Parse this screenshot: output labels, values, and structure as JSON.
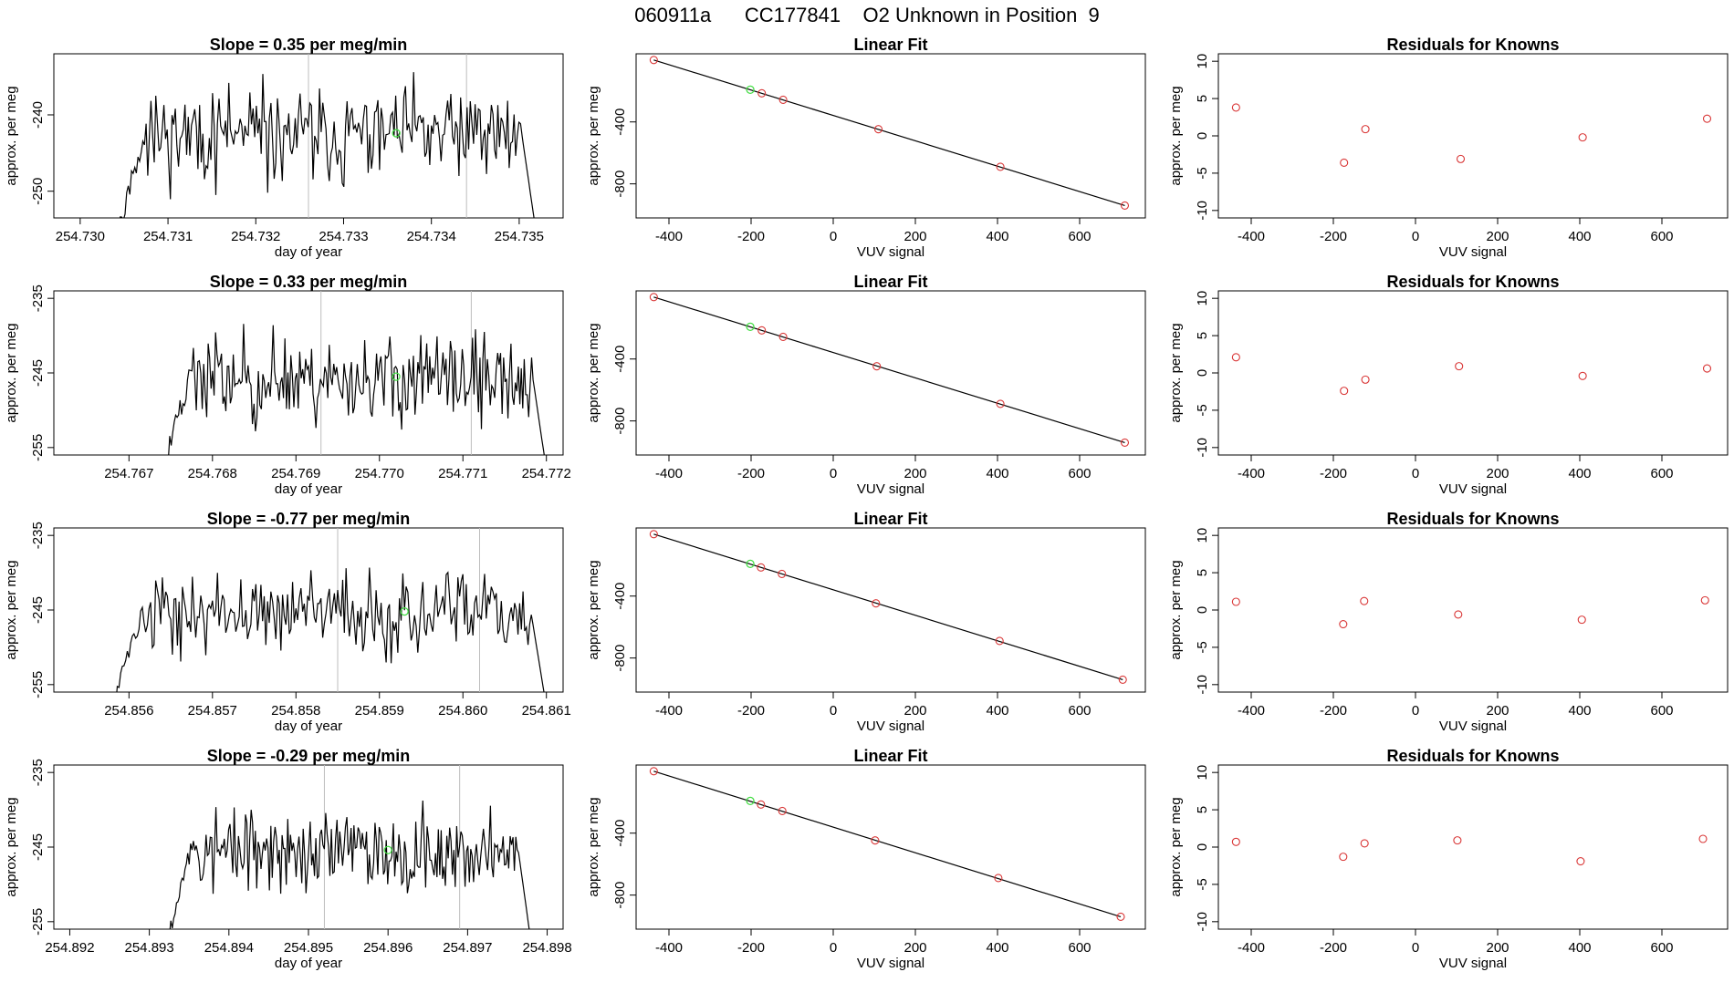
{
  "page": {
    "title": "060911a      CC177841    O2 Unknown in Position  9"
  },
  "chart_data": [
    {
      "type": "line",
      "row": 0,
      "col": 0,
      "title": "Slope =  0.35  per meg/min",
      "xlabel": "day of year",
      "ylabel": "approx. per meg",
      "xlim": [
        254.7297,
        254.7355
      ],
      "ylim": [
        -253.5,
        -232
      ],
      "xticks": [
        254.73,
        254.731,
        254.732,
        254.733,
        254.734,
        254.735
      ],
      "xtick_labels": [
        "254.730",
        "254.731",
        "254.732",
        "254.733",
        "254.734",
        "254.735"
      ],
      "yticks": [
        -250,
        -240
      ],
      "ytick_labels": [
        "-250",
        "-240"
      ],
      "vlines": [
        254.7326,
        254.7344
      ],
      "series": [
        {
          "name": "trace",
          "x_start": 254.7304,
          "x_end": 254.7352,
          "level": -242.7,
          "noise": 3.1,
          "ramp_low": -256,
          "seed": 11
        }
      ],
      "highlight": [
        {
          "x": 254.7336,
          "y": -242.4
        }
      ]
    },
    {
      "type": "line",
      "row": 0,
      "col": 1,
      "title": "Linear Fit",
      "xlabel": "VUV signal",
      "ylabel": "approx. per meg",
      "xlim": [
        -480,
        760
      ],
      "ylim": [
        -1020,
        40
      ],
      "xticks": [
        -400,
        -200,
        0,
        200,
        400,
        600
      ],
      "xtick_labels": [
        "-400",
        "-200",
        "0",
        "200",
        "400",
        "600"
      ],
      "yticks": [
        -800,
        -400
      ],
      "ytick_labels": [
        "-800",
        "-400"
      ],
      "line": {
        "x": [
          -437,
          710
        ],
        "y": [
          0,
          -940
        ]
      },
      "points": [
        {
          "x": -437,
          "y": 0
        },
        {
          "x": -174,
          "y": -215
        },
        {
          "x": -122,
          "y": -257
        },
        {
          "x": 110,
          "y": -447
        },
        {
          "x": 407,
          "y": -690
        },
        {
          "x": 710,
          "y": -940
        }
      ],
      "highlight": [
        {
          "x": -202,
          "y": -192
        }
      ]
    },
    {
      "type": "scatter",
      "row": 0,
      "col": 2,
      "title": "Residuals for Knowns",
      "xlabel": "VUV signal",
      "ylabel": "approx. per meg",
      "xlim": [
        -480,
        760
      ],
      "ylim": [
        -11,
        11
      ],
      "xticks": [
        -400,
        -200,
        0,
        200,
        400,
        600
      ],
      "xtick_labels": [
        "-400",
        "-200",
        "0",
        "200",
        "400",
        "600"
      ],
      "yticks": [
        -10,
        -5,
        0,
        5,
        10
      ],
      "ytick_labels": [
        "-10",
        "-5",
        "0",
        "5",
        "10"
      ],
      "points": [
        {
          "x": -437,
          "y": 3.8
        },
        {
          "x": -174,
          "y": -3.6
        },
        {
          "x": -122,
          "y": 0.9
        },
        {
          "x": 110,
          "y": -3.1
        },
        {
          "x": 407,
          "y": -0.2
        },
        {
          "x": 710,
          "y": 2.3
        }
      ]
    },
    {
      "type": "line",
      "row": 1,
      "col": 0,
      "title": "Slope =  0.33  per meg/min",
      "xlabel": "day of year",
      "ylabel": "approx. per meg",
      "xlim": [
        254.7661,
        254.7722
      ],
      "ylim": [
        -256,
        -234
      ],
      "xticks": [
        254.767,
        254.768,
        254.769,
        254.77,
        254.771,
        254.772
      ],
      "xtick_labels": [
        "254.767",
        "254.768",
        "254.769",
        "254.770",
        "254.771",
        "254.772"
      ],
      "yticks": [
        -255,
        -245,
        -235
      ],
      "ytick_labels": [
        "-255",
        "-245",
        "-235"
      ],
      "vlines": [
        254.7693,
        254.7711
      ],
      "series": [
        {
          "name": "trace",
          "x_start": 254.7674,
          "x_end": 254.772,
          "level": -245.8,
          "noise": 3.0,
          "ramp_low": -258,
          "seed": 23
        }
      ],
      "highlight": [
        {
          "x": 254.7702,
          "y": -245.5
        }
      ]
    },
    {
      "type": "line",
      "row": 1,
      "col": 1,
      "title": "Linear Fit",
      "xlabel": "VUV signal",
      "ylabel": "approx. per meg",
      "xlim": [
        -480,
        760
      ],
      "ylim": [
        -1020,
        40
      ],
      "xticks": [
        -400,
        -200,
        0,
        200,
        400,
        600
      ],
      "xtick_labels": [
        "-400",
        "-200",
        "0",
        "200",
        "400",
        "600"
      ],
      "yticks": [
        -800,
        -400
      ],
      "ytick_labels": [
        "-800",
        "-400"
      ],
      "line": {
        "x": [
          -437,
          710
        ],
        "y": [
          0,
          -940
        ]
      },
      "points": [
        {
          "x": -437,
          "y": 0
        },
        {
          "x": -174,
          "y": -215
        },
        {
          "x": -122,
          "y": -257
        },
        {
          "x": 106,
          "y": -447
        },
        {
          "x": 407,
          "y": -690
        },
        {
          "x": 710,
          "y": -940
        }
      ],
      "highlight": [
        {
          "x": -202,
          "y": -192
        }
      ]
    },
    {
      "type": "scatter",
      "row": 1,
      "col": 2,
      "title": "Residuals for Knowns",
      "xlabel": "VUV signal",
      "ylabel": "approx. per meg",
      "xlim": [
        -480,
        760
      ],
      "ylim": [
        -11,
        11
      ],
      "xticks": [
        -400,
        -200,
        0,
        200,
        400,
        600
      ],
      "xtick_labels": [
        "-400",
        "-200",
        "0",
        "200",
        "400",
        "600"
      ],
      "yticks": [
        -10,
        -5,
        0,
        5,
        10
      ],
      "ytick_labels": [
        "-10",
        "-5",
        "0",
        "5",
        "10"
      ],
      "points": [
        {
          "x": -437,
          "y": 2.1
        },
        {
          "x": -174,
          "y": -2.4
        },
        {
          "x": -122,
          "y": -0.9
        },
        {
          "x": 106,
          "y": 0.9
        },
        {
          "x": 407,
          "y": -0.4
        },
        {
          "x": 710,
          "y": 0.6
        }
      ]
    },
    {
      "type": "line",
      "row": 2,
      "col": 0,
      "title": "Slope =  -0.77  per meg/min",
      "xlabel": "day of year",
      "ylabel": "approx. per meg",
      "xlim": [
        254.8551,
        254.8612
      ],
      "ylim": [
        -256,
        -234
      ],
      "xticks": [
        254.856,
        254.857,
        254.858,
        254.859,
        254.86,
        254.861
      ],
      "xtick_labels": [
        "254.856",
        "254.857",
        "254.858",
        "254.859",
        "254.860",
        "254.861"
      ],
      "yticks": [
        -255,
        -245,
        -235
      ],
      "ytick_labels": [
        "-255",
        "-245",
        "-235"
      ],
      "vlines": [
        254.8585,
        254.8602
      ],
      "series": [
        {
          "name": "trace",
          "x_start": 254.8558,
          "x_end": 254.861,
          "level": -245.5,
          "noise": 2.7,
          "ramp_low": -258,
          "seed": 37
        }
      ],
      "highlight": [
        {
          "x": 254.8593,
          "y": -245.2
        }
      ]
    },
    {
      "type": "line",
      "row": 2,
      "col": 1,
      "title": "Linear Fit",
      "xlabel": "VUV signal",
      "ylabel": "approx. per meg",
      "xlim": [
        -480,
        760
      ],
      "ylim": [
        -1020,
        40
      ],
      "xticks": [
        -400,
        -200,
        0,
        200,
        400,
        600
      ],
      "xtick_labels": [
        "-400",
        "-200",
        "0",
        "200",
        "400",
        "600"
      ],
      "yticks": [
        -800,
        -400
      ],
      "ytick_labels": [
        "-800",
        "-400"
      ],
      "line": {
        "x": [
          -437,
          705
        ],
        "y": [
          0,
          -940
        ]
      },
      "points": [
        {
          "x": -437,
          "y": 0
        },
        {
          "x": -176,
          "y": -215
        },
        {
          "x": -125,
          "y": -257
        },
        {
          "x": 104,
          "y": -447
        },
        {
          "x": 405,
          "y": -690
        },
        {
          "x": 705,
          "y": -940
        }
      ],
      "highlight": [
        {
          "x": -202,
          "y": -192
        }
      ]
    },
    {
      "type": "scatter",
      "row": 2,
      "col": 2,
      "title": "Residuals for Knowns",
      "xlabel": "VUV signal",
      "ylabel": "approx. per meg",
      "xlim": [
        -480,
        760
      ],
      "ylim": [
        -11,
        11
      ],
      "xticks": [
        -400,
        -200,
        0,
        200,
        400,
        600
      ],
      "xtick_labels": [
        "-400",
        "-200",
        "0",
        "200",
        "400",
        "600"
      ],
      "yticks": [
        -10,
        -5,
        0,
        5,
        10
      ],
      "ytick_labels": [
        "-10",
        "-5",
        "0",
        "5",
        "10"
      ],
      "points": [
        {
          "x": -437,
          "y": 1.1
        },
        {
          "x": -176,
          "y": -1.9
        },
        {
          "x": -125,
          "y": 1.2
        },
        {
          "x": 104,
          "y": -0.6
        },
        {
          "x": 405,
          "y": -1.3
        },
        {
          "x": 705,
          "y": 1.3
        }
      ]
    },
    {
      "type": "line",
      "row": 3,
      "col": 0,
      "title": "Slope =  -0.29  per meg/min",
      "xlabel": "day of year",
      "ylabel": "approx. per meg",
      "xlim": [
        254.8918,
        254.8982
      ],
      "ylim": [
        -256,
        -234
      ],
      "xticks": [
        254.892,
        254.893,
        254.894,
        254.895,
        254.896,
        254.897,
        254.898
      ],
      "xtick_labels": [
        "254.892",
        "254.893",
        "254.894",
        "254.895",
        "254.896",
        "254.897",
        "254.898"
      ],
      "yticks": [
        -255,
        -245,
        -235
      ],
      "ytick_labels": [
        "-255",
        "-245",
        "-235"
      ],
      "vlines": [
        254.8952,
        254.8969
      ],
      "series": [
        {
          "name": "trace",
          "x_start": 254.8932,
          "x_end": 254.8978,
          "level": -245.6,
          "noise": 2.8,
          "ramp_low": -258,
          "seed": 53
        }
      ],
      "highlight": [
        {
          "x": 254.896,
          "y": -245.4
        }
      ]
    },
    {
      "type": "line",
      "row": 3,
      "col": 1,
      "title": "Linear Fit",
      "xlabel": "VUV signal",
      "ylabel": "approx. per meg",
      "xlim": [
        -480,
        760
      ],
      "ylim": [
        -1020,
        40
      ],
      "xticks": [
        -400,
        -200,
        0,
        200,
        400,
        600
      ],
      "xtick_labels": [
        "-400",
        "-200",
        "0",
        "200",
        "400",
        "600"
      ],
      "yticks": [
        -800,
        -400
      ],
      "ytick_labels": [
        "-800",
        "-400"
      ],
      "line": {
        "x": [
          -437,
          700
        ],
        "y": [
          0,
          -940
        ]
      },
      "points": [
        {
          "x": -437,
          "y": 0
        },
        {
          "x": -176,
          "y": -215
        },
        {
          "x": -124,
          "y": -257
        },
        {
          "x": 102,
          "y": -447
        },
        {
          "x": 402,
          "y": -690
        },
        {
          "x": 700,
          "y": -940
        }
      ],
      "highlight": [
        {
          "x": -202,
          "y": -192
        }
      ]
    },
    {
      "type": "scatter",
      "row": 3,
      "col": 2,
      "title": "Residuals for Knowns",
      "xlabel": "VUV signal",
      "ylabel": "approx. per meg",
      "xlim": [
        -480,
        760
      ],
      "ylim": [
        -11,
        11
      ],
      "xticks": [
        -400,
        -200,
        0,
        200,
        400,
        600
      ],
      "xtick_labels": [
        "-400",
        "-200",
        "0",
        "200",
        "400",
        "600"
      ],
      "yticks": [
        -10,
        -5,
        0,
        5,
        10
      ],
      "ytick_labels": [
        "-10",
        "-5",
        "0",
        "5",
        "10"
      ],
      "points": [
        {
          "x": -437,
          "y": 0.7
        },
        {
          "x": -176,
          "y": -1.3
        },
        {
          "x": -124,
          "y": 0.5
        },
        {
          "x": 102,
          "y": 0.9
        },
        {
          "x": 402,
          "y": -1.9
        },
        {
          "x": 700,
          "y": 1.1
        }
      ]
    }
  ]
}
